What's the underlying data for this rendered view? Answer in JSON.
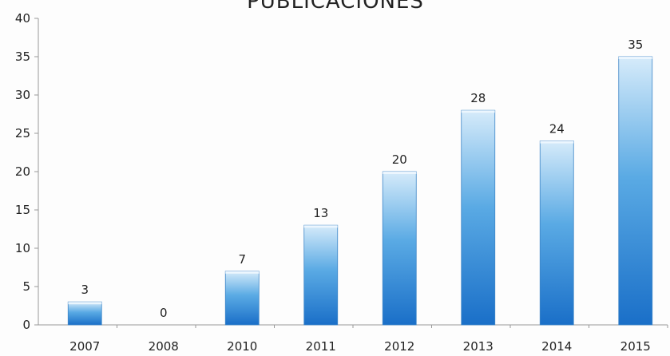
{
  "chart_data": {
    "type": "bar",
    "title": "PUBLICACIONES",
    "categories": [
      "2007",
      "2008",
      "2010",
      "2011",
      "2012",
      "2013",
      "2014",
      "2015"
    ],
    "values": [
      3,
      0,
      7,
      13,
      20,
      28,
      24,
      35
    ],
    "data_labels": [
      "3",
      "0",
      "7",
      "13",
      "20",
      "28",
      "24",
      "35"
    ],
    "xlabel": "",
    "ylabel": "",
    "ylim": [
      0,
      40
    ],
    "yticks": [
      0,
      5,
      10,
      15,
      20,
      25,
      30,
      35,
      40
    ],
    "grid": false,
    "legend": "none",
    "colors": {
      "bar_top": "#d6ebfa",
      "bar_mid": "#5aaae4",
      "bar_bottom": "#1a6fc8",
      "axis": "#999999",
      "text": "#222222"
    }
  }
}
